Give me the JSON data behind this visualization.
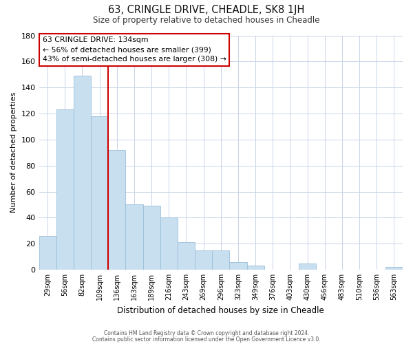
{
  "title": "63, CRINGLE DRIVE, CHEADLE, SK8 1JH",
  "subtitle": "Size of property relative to detached houses in Cheadle",
  "xlabel": "Distribution of detached houses by size in Cheadle",
  "ylabel": "Number of detached properties",
  "bar_labels": [
    "29sqm",
    "56sqm",
    "82sqm",
    "109sqm",
    "136sqm",
    "163sqm",
    "189sqm",
    "216sqm",
    "243sqm",
    "269sqm",
    "296sqm",
    "323sqm",
    "349sqm",
    "376sqm",
    "403sqm",
    "430sqm",
    "456sqm",
    "483sqm",
    "510sqm",
    "536sqm",
    "563sqm"
  ],
  "bar_values": [
    26,
    123,
    149,
    118,
    92,
    50,
    49,
    40,
    21,
    15,
    15,
    6,
    3,
    0,
    0,
    5,
    0,
    0,
    0,
    0,
    2
  ],
  "bar_color": "#c8dff0",
  "bar_edge_color": "#9bbfd8",
  "vline_x_index": 4,
  "vline_color": "#cc0000",
  "annotation_line1": "63 CRINGLE DRIVE: 134sqm",
  "annotation_line2": "← 56% of detached houses are smaller (399)",
  "annotation_line3": "43% of semi-detached houses are larger (308) →",
  "footer_line1": "Contains HM Land Registry data © Crown copyright and database right 2024.",
  "footer_line2": "Contains public sector information licensed under the Open Government Licence v3.0.",
  "ylim": [
    0,
    180
  ],
  "yticks": [
    0,
    20,
    40,
    60,
    80,
    100,
    120,
    140,
    160,
    180
  ],
  "background_color": "#ffffff",
  "grid_color": "#c8d4e8"
}
